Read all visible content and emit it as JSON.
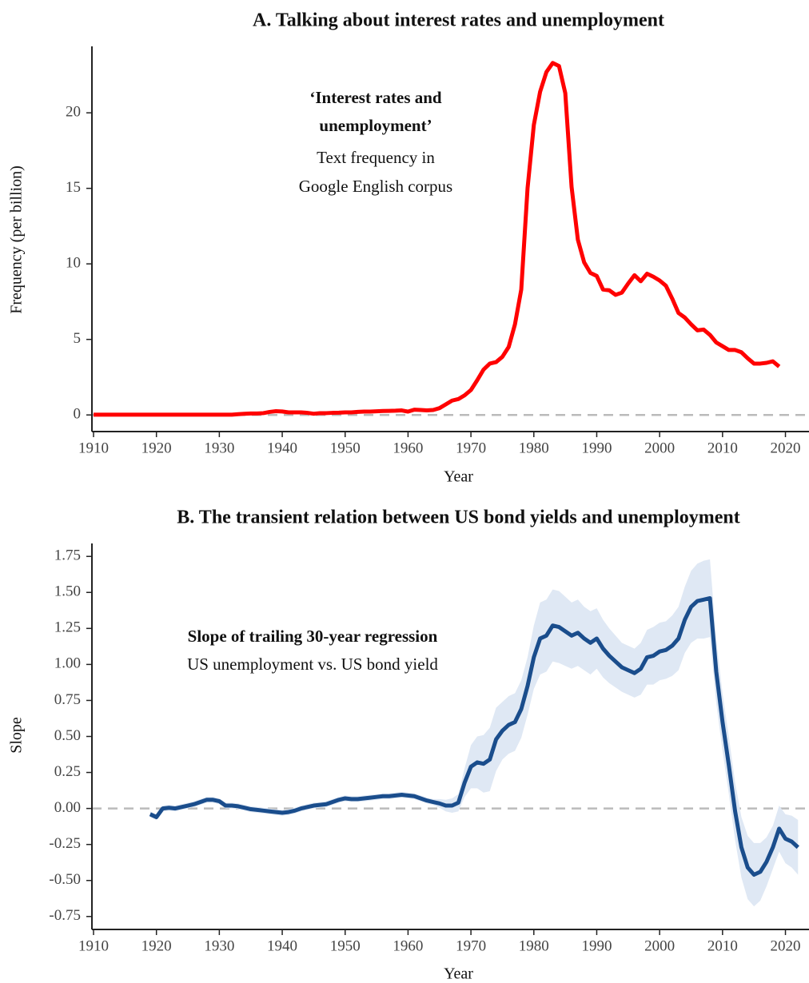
{
  "chart_data": [
    {
      "type": "line",
      "title": "A. Talking about interest rates and unemployment",
      "xlabel": "Year",
      "ylabel": "Frequency (per billion)",
      "annotation": {
        "bold": [
          "‘Interest rates and",
          "unemployment’"
        ],
        "normal": [
          "Text frequency in",
          "Google English corpus"
        ]
      },
      "xlim": [
        1910,
        2024
      ],
      "xticks": [
        1910,
        1920,
        1930,
        1940,
        1950,
        1960,
        1970,
        1980,
        1990,
        2000,
        2010,
        2020
      ],
      "ylim": [
        -1.1,
        24.4
      ],
      "yticks": [
        0,
        5,
        10,
        15,
        20
      ],
      "zero_line": true,
      "x": [
        1910,
        1911,
        1912,
        1913,
        1914,
        1915,
        1916,
        1917,
        1918,
        1919,
        1920,
        1921,
        1922,
        1923,
        1924,
        1925,
        1926,
        1927,
        1928,
        1929,
        1930,
        1931,
        1932,
        1933,
        1934,
        1935,
        1936,
        1937,
        1938,
        1939,
        1940,
        1941,
        1942,
        1943,
        1944,
        1945,
        1946,
        1947,
        1948,
        1949,
        1950,
        1951,
        1952,
        1953,
        1954,
        1955,
        1956,
        1957,
        1958,
        1959,
        1960,
        1961,
        1962,
        1963,
        1964,
        1965,
        1966,
        1967,
        1968,
        1969,
        1970,
        1971,
        1972,
        1973,
        1974,
        1975,
        1976,
        1977,
        1978,
        1979,
        1980,
        1981,
        1982,
        1983,
        1984,
        1985,
        1986,
        1987,
        1988,
        1989,
        1990,
        1991,
        1992,
        1993,
        1994,
        1995,
        1996,
        1997,
        1998,
        1999,
        2000,
        2001,
        2002,
        2003,
        2004,
        2005,
        2006,
        2007,
        2008,
        2009,
        2010,
        2011,
        2012,
        2013,
        2014,
        2015,
        2016,
        2017,
        2018,
        2019
      ],
      "series": [
        {
          "color": "#ff0000",
          "values": [
            0.02,
            0.02,
            0.02,
            0.02,
            0.02,
            0.02,
            0.02,
            0.02,
            0.02,
            0.02,
            0.02,
            0.02,
            0.02,
            0.02,
            0.02,
            0.02,
            0.02,
            0.02,
            0.02,
            0.02,
            0.02,
            0.02,
            0.02,
            0.05,
            0.08,
            0.1,
            0.1,
            0.12,
            0.2,
            0.25,
            0.23,
            0.17,
            0.17,
            0.17,
            0.14,
            0.08,
            0.12,
            0.12,
            0.14,
            0.15,
            0.17,
            0.17,
            0.2,
            0.22,
            0.22,
            0.24,
            0.26,
            0.27,
            0.28,
            0.3,
            0.22,
            0.35,
            0.33,
            0.3,
            0.33,
            0.45,
            0.7,
            0.95,
            1.05,
            1.3,
            1.65,
            2.3,
            3.0,
            3.4,
            3.5,
            3.85,
            4.5,
            6.0,
            8.3,
            15.0,
            19.2,
            21.4,
            22.7,
            23.3,
            23.1,
            21.3,
            15.1,
            11.6,
            10.1,
            9.4,
            9.2,
            8.3,
            8.25,
            7.95,
            8.1,
            8.7,
            9.25,
            8.85,
            9.35,
            9.15,
            8.9,
            8.55,
            7.7,
            6.75,
            6.45,
            6.0,
            5.6,
            5.65,
            5.3,
            4.8,
            4.55,
            4.3,
            4.3,
            4.15,
            3.75,
            3.4,
            3.4,
            3.45,
            3.55,
            3.2
          ]
        }
      ]
    },
    {
      "type": "line",
      "title": "B. The transient relation between US bond yields and unemployment",
      "xlabel": "Year",
      "ylabel": "Slope",
      "annotation": {
        "bold": [
          "Slope of trailing 30-year regression"
        ],
        "normal": [
          "US unemployment vs. US bond yield"
        ]
      },
      "xlim": [
        1910,
        2024
      ],
      "xticks": [
        1910,
        1920,
        1930,
        1940,
        1950,
        1960,
        1970,
        1980,
        1990,
        2000,
        2010,
        2020
      ],
      "ylim": [
        -0.84,
        1.84
      ],
      "yticks": [
        1.75,
        {
          "value": 1.5,
          "label": "1.50"
        },
        1.25,
        {
          "value": 1,
          "label": "1.00"
        },
        0.75,
        {
          "value": 0.5,
          "label": "0.50"
        },
        0.25,
        {
          "value": 0,
          "label": "0.00"
        },
        -0.25,
        {
          "value": -0.5,
          "label": "-0.50"
        },
        -0.75
      ],
      "zero_line": true,
      "x": [
        1919,
        1920,
        1921,
        1922,
        1923,
        1924,
        1925,
        1926,
        1927,
        1928,
        1929,
        1930,
        1931,
        1932,
        1933,
        1934,
        1935,
        1936,
        1937,
        1938,
        1939,
        1940,
        1941,
        1942,
        1943,
        1944,
        1945,
        1946,
        1947,
        1948,
        1949,
        1950,
        1951,
        1952,
        1953,
        1954,
        1955,
        1956,
        1957,
        1958,
        1959,
        1960,
        1961,
        1962,
        1963,
        1964,
        1965,
        1966,
        1967,
        1968,
        1969,
        1970,
        1971,
        1972,
        1973,
        1974,
        1975,
        1976,
        1977,
        1978,
        1979,
        1980,
        1981,
        1982,
        1983,
        1984,
        1985,
        1986,
        1987,
        1988,
        1989,
        1990,
        1991,
        1992,
        1993,
        1994,
        1995,
        1996,
        1997,
        1998,
        1999,
        2000,
        2001,
        2002,
        2003,
        2004,
        2005,
        2006,
        2007,
        2008,
        2009,
        2010,
        2011,
        2012,
        2013,
        2014,
        2015,
        2016,
        2017,
        2018,
        2019,
        2020,
        2021,
        2022
      ],
      "series": [
        {
          "color": "#1a4d8c",
          "band_color": "#dfe8f4",
          "values": [
            -0.04,
            -0.06,
            0.0,
            0.005,
            0.0,
            0.01,
            0.02,
            0.03,
            0.045,
            0.06,
            0.06,
            0.05,
            0.02,
            0.02,
            0.015,
            0.005,
            -0.005,
            -0.01,
            -0.015,
            -0.02,
            -0.025,
            -0.03,
            -0.025,
            -0.015,
            0.0,
            0.01,
            0.02,
            0.025,
            0.03,
            0.045,
            0.06,
            0.07,
            0.065,
            0.065,
            0.07,
            0.075,
            0.08,
            0.085,
            0.085,
            0.09,
            0.095,
            0.09,
            0.085,
            0.07,
            0.055,
            0.045,
            0.035,
            0.02,
            0.02,
            0.04,
            0.18,
            0.29,
            0.32,
            0.31,
            0.34,
            0.48,
            0.54,
            0.58,
            0.6,
            0.69,
            0.85,
            1.05,
            1.18,
            1.2,
            1.27,
            1.26,
            1.23,
            1.2,
            1.22,
            1.18,
            1.15,
            1.18,
            1.11,
            1.06,
            1.02,
            0.98,
            0.96,
            0.94,
            0.97,
            1.05,
            1.06,
            1.09,
            1.1,
            1.13,
            1.18,
            1.31,
            1.4,
            1.44,
            1.45,
            1.46,
            0.95,
            0.6,
            0.3,
            -0.02,
            -0.27,
            -0.41,
            -0.46,
            -0.44,
            -0.37,
            -0.27,
            -0.14,
            -0.21,
            -0.23,
            -0.27
          ],
          "lower": [
            -0.06,
            -0.08,
            -0.02,
            -0.015,
            -0.02,
            -0.01,
            0.0,
            0.01,
            0.025,
            0.04,
            0.04,
            0.03,
            0.0,
            0.0,
            -0.005,
            -0.015,
            -0.025,
            -0.03,
            -0.035,
            -0.04,
            -0.045,
            -0.05,
            -0.045,
            -0.035,
            -0.02,
            -0.01,
            0.0,
            0.005,
            0.01,
            0.025,
            0.04,
            0.05,
            0.045,
            0.045,
            0.05,
            0.055,
            0.06,
            0.065,
            0.065,
            0.07,
            0.075,
            0.07,
            0.065,
            0.05,
            0.035,
            0.025,
            0.005,
            -0.02,
            -0.03,
            -0.02,
            0.08,
            0.14,
            0.14,
            0.11,
            0.12,
            0.26,
            0.34,
            0.38,
            0.4,
            0.49,
            0.65,
            0.83,
            0.93,
            0.95,
            1.02,
            1.01,
            0.99,
            0.97,
            0.99,
            0.96,
            0.93,
            0.97,
            0.91,
            0.87,
            0.84,
            0.81,
            0.79,
            0.77,
            0.79,
            0.86,
            0.86,
            0.89,
            0.9,
            0.92,
            0.96,
            1.08,
            1.15,
            1.18,
            1.18,
            1.19,
            0.73,
            0.4,
            0.1,
            -0.22,
            -0.48,
            -0.63,
            -0.68,
            -0.64,
            -0.54,
            -0.42,
            -0.3,
            -0.38,
            -0.41,
            -0.46
          ],
          "upper": [
            -0.02,
            -0.04,
            0.02,
            0.025,
            0.02,
            0.03,
            0.04,
            0.05,
            0.065,
            0.08,
            0.08,
            0.07,
            0.04,
            0.04,
            0.035,
            0.025,
            0.015,
            0.01,
            0.005,
            0.0,
            -0.005,
            -0.01,
            -0.005,
            0.005,
            0.02,
            0.03,
            0.04,
            0.045,
            0.05,
            0.065,
            0.08,
            0.09,
            0.085,
            0.085,
            0.09,
            0.095,
            0.1,
            0.105,
            0.105,
            0.11,
            0.115,
            0.11,
            0.105,
            0.09,
            0.075,
            0.065,
            0.065,
            0.06,
            0.07,
            0.1,
            0.28,
            0.44,
            0.5,
            0.51,
            0.56,
            0.7,
            0.74,
            0.78,
            0.8,
            0.89,
            1.05,
            1.27,
            1.43,
            1.45,
            1.52,
            1.51,
            1.47,
            1.43,
            1.45,
            1.4,
            1.37,
            1.39,
            1.31,
            1.25,
            1.2,
            1.15,
            1.13,
            1.11,
            1.15,
            1.24,
            1.26,
            1.29,
            1.3,
            1.34,
            1.4,
            1.54,
            1.65,
            1.7,
            1.72,
            1.73,
            1.17,
            0.8,
            0.5,
            0.18,
            -0.06,
            -0.19,
            -0.24,
            -0.24,
            -0.2,
            -0.12,
            0.02,
            -0.04,
            -0.05,
            -0.08
          ]
        }
      ]
    }
  ]
}
